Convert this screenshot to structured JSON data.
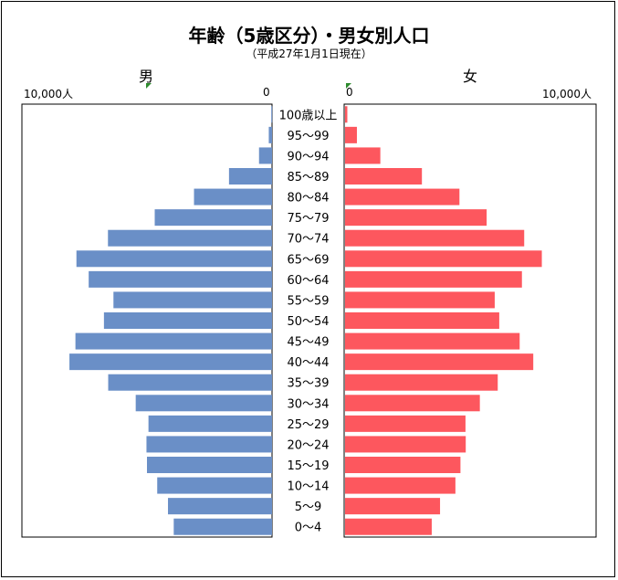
{
  "chart_data": {
    "type": "bar",
    "title": "年齢（5歳区分）・男女別人口",
    "subtitle": "（平成27年1月1日現在）",
    "male_label": "男",
    "female_label": "女",
    "tick_max_label": "10,000人",
    "tick_zero_label": "0",
    "xlim": [
      0,
      10000
    ],
    "categories": [
      "100歳以上",
      "95〜99",
      "90〜94",
      "85〜89",
      "80〜84",
      "75〜79",
      "70〜74",
      "65〜69",
      "60〜64",
      "55〜59",
      "50〜54",
      "45〜49",
      "40〜44",
      "35〜39",
      "30〜34",
      "25〜29",
      "20〜24",
      "15〜19",
      "10〜14",
      "5〜9",
      "0〜4"
    ],
    "series": [
      {
        "name": "男",
        "values": [
          30,
          130,
          520,
          1720,
          3120,
          4690,
          6560,
          7820,
          7330,
          6340,
          6720,
          7860,
          8100,
          6550,
          5450,
          4940,
          5020,
          5000,
          4590,
          4160,
          3930
        ]
      },
      {
        "name": "女",
        "values": [
          90,
          470,
          1400,
          3050,
          4540,
          5620,
          7110,
          7810,
          7020,
          5940,
          6120,
          6930,
          7470,
          6060,
          5350,
          4780,
          4790,
          4580,
          4380,
          3770,
          3440
        ]
      }
    ],
    "colors": {
      "male": "#6a8fc7",
      "female": "#fd575e",
      "marker": "#2e8b2e"
    }
  }
}
